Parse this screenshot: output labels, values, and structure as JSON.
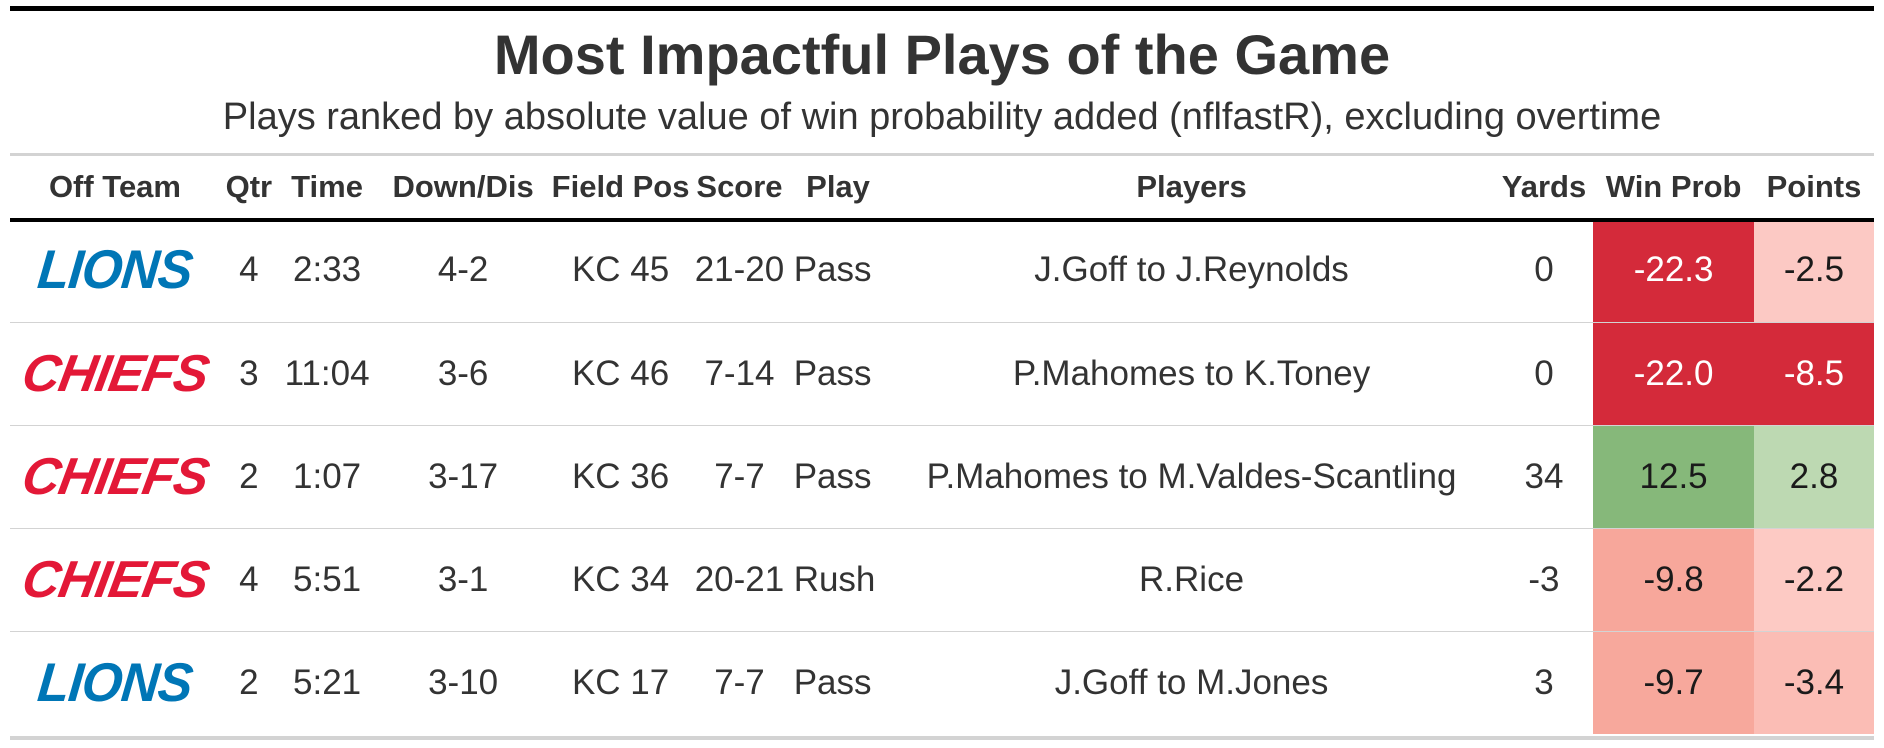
{
  "title": "Most Impactful Plays of the Game",
  "subtitle": "Plays ranked by absolute value of win probability added (nflfastR), excluding overtime",
  "chart_data": {
    "type": "table",
    "columns": [
      "Off Team",
      "Qtr",
      "Time",
      "Down/Dis",
      "Field Pos",
      "Score",
      "Play",
      "Players",
      "Yards",
      "Win Prob",
      "Points"
    ],
    "rows": [
      {
        "team": "LIONS",
        "team_color": "#0076b6",
        "qtr": "4",
        "time": "2:33",
        "down_dis": "4-2",
        "field_pos": "KC 45",
        "score": "21-20",
        "play": "Pass",
        "players": "J.Goff to J.Reynolds",
        "yards": "0",
        "win_prob": -22.3,
        "win_prob_label": "-22.3",
        "win_prob_color": "#d42a3a",
        "win_prob_text": "#ffffff",
        "points": -2.5,
        "points_label": "-2.5",
        "points_color": "#fcc9c4",
        "points_text": "#1a1a1a"
      },
      {
        "team": "CHIEFS",
        "team_color": "#e31837",
        "qtr": "3",
        "time": "11:04",
        "down_dis": "3-6",
        "field_pos": "KC 46",
        "score": "7-14",
        "play": "Pass",
        "players": "P.Mahomes to K.Toney",
        "yards": "0",
        "win_prob": -22.0,
        "win_prob_label": "-22.0",
        "win_prob_color": "#d42a3a",
        "win_prob_text": "#ffffff",
        "points": -8.5,
        "points_label": "-8.5",
        "points_color": "#d42a3a",
        "points_text": "#ffffff"
      },
      {
        "team": "CHIEFS",
        "team_color": "#e31837",
        "qtr": "2",
        "time": "1:07",
        "down_dis": "3-17",
        "field_pos": "KC 36",
        "score": "7-7",
        "play": "Pass",
        "players": "P.Mahomes to M.Valdes-Scantling",
        "yards": "34",
        "win_prob": 12.5,
        "win_prob_label": "12.5",
        "win_prob_color": "#86b87a",
        "win_prob_text": "#1a1a1a",
        "points": 2.8,
        "points_label": "2.8",
        "points_color": "#bdd9b2",
        "points_text": "#1a1a1a"
      },
      {
        "team": "CHIEFS",
        "team_color": "#e31837",
        "qtr": "4",
        "time": "5:51",
        "down_dis": "3-1",
        "field_pos": "KC 34",
        "score": "20-21",
        "play": "Rush",
        "players": "R.Rice",
        "yards": "-3",
        "win_prob": -9.8,
        "win_prob_label": "-9.8",
        "win_prob_color": "#f7a79b",
        "win_prob_text": "#1a1a1a",
        "points": -2.2,
        "points_label": "-2.2",
        "points_color": "#fdcac4",
        "points_text": "#1a1a1a"
      },
      {
        "team": "LIONS",
        "team_color": "#0076b6",
        "qtr": "2",
        "time": "5:21",
        "down_dis": "3-10",
        "field_pos": "KC 17",
        "score": "7-7",
        "play": "Pass",
        "players": "J.Goff to M.Jones",
        "yards": "3",
        "win_prob": -9.7,
        "win_prob_label": "-9.7",
        "win_prob_color": "#f7a89c",
        "win_prob_text": "#1a1a1a",
        "points": -3.4,
        "points_label": "-3.4",
        "points_color": "#fbbdb5",
        "points_text": "#1a1a1a"
      }
    ]
  }
}
